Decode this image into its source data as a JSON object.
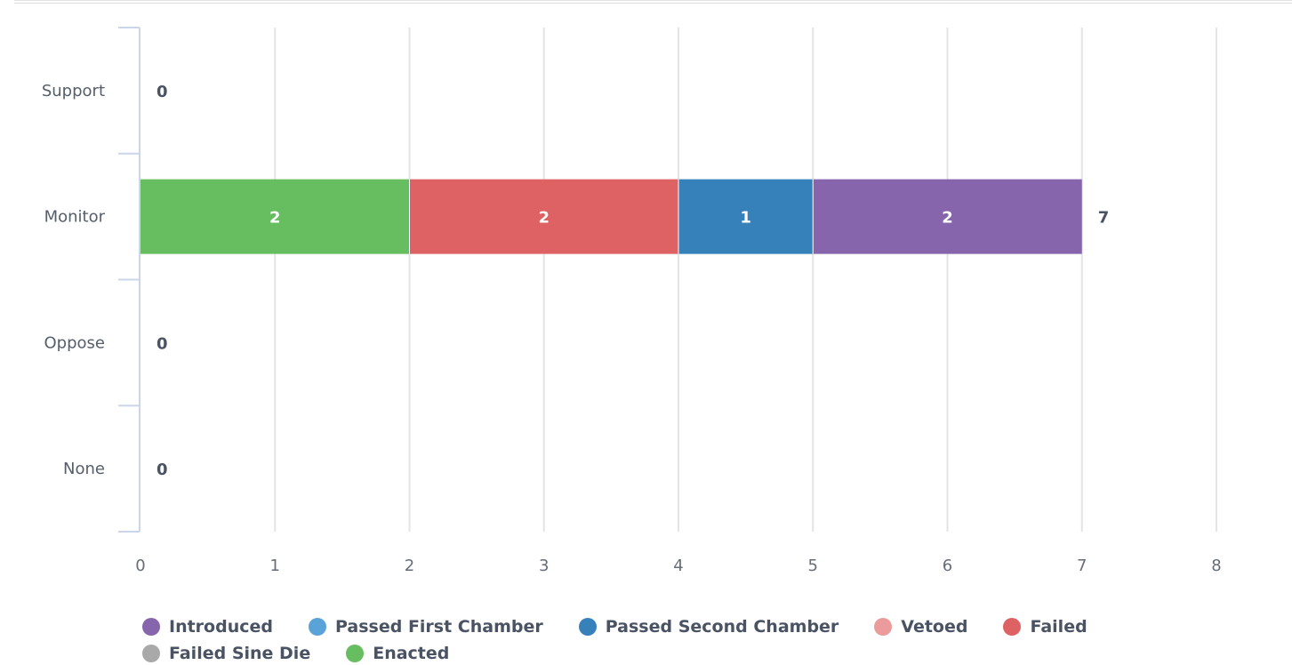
{
  "chart_data": {
    "type": "bar",
    "orientation": "horizontal",
    "stacked": true,
    "categories": [
      "Support",
      "Monitor",
      "Oppose",
      "None"
    ],
    "series": [
      {
        "name": "Enacted",
        "color": "#67be61",
        "values": [
          0,
          2,
          0,
          0
        ]
      },
      {
        "name": "Failed",
        "color": "#de6263",
        "values": [
          0,
          2,
          0,
          0
        ]
      },
      {
        "name": "Passed Second Chamber",
        "color": "#3781ba",
        "values": [
          0,
          1,
          0,
          0
        ]
      },
      {
        "name": "Introduced",
        "color": "#8765ac",
        "values": [
          0,
          2,
          0,
          0
        ]
      }
    ],
    "totals": [
      0,
      7,
      0,
      0
    ],
    "x_ticks": [
      "0",
      "1",
      "2",
      "3",
      "4",
      "5",
      "6",
      "7",
      "8"
    ],
    "xlim": [
      0,
      8
    ],
    "grid": true,
    "legend_position": "bottom"
  },
  "legend": [
    {
      "label": "Introduced",
      "color": "#8765ac"
    },
    {
      "label": "Passed First Chamber",
      "color": "#5aa3d8"
    },
    {
      "label": "Passed Second Chamber",
      "color": "#3781ba"
    },
    {
      "label": "Vetoed",
      "color": "#eb9b9b"
    },
    {
      "label": "Failed",
      "color": "#de6263"
    },
    {
      "label": "Failed Sine Die",
      "color": "#a9a9a9"
    },
    {
      "label": "Enacted",
      "color": "#67be61"
    }
  ]
}
